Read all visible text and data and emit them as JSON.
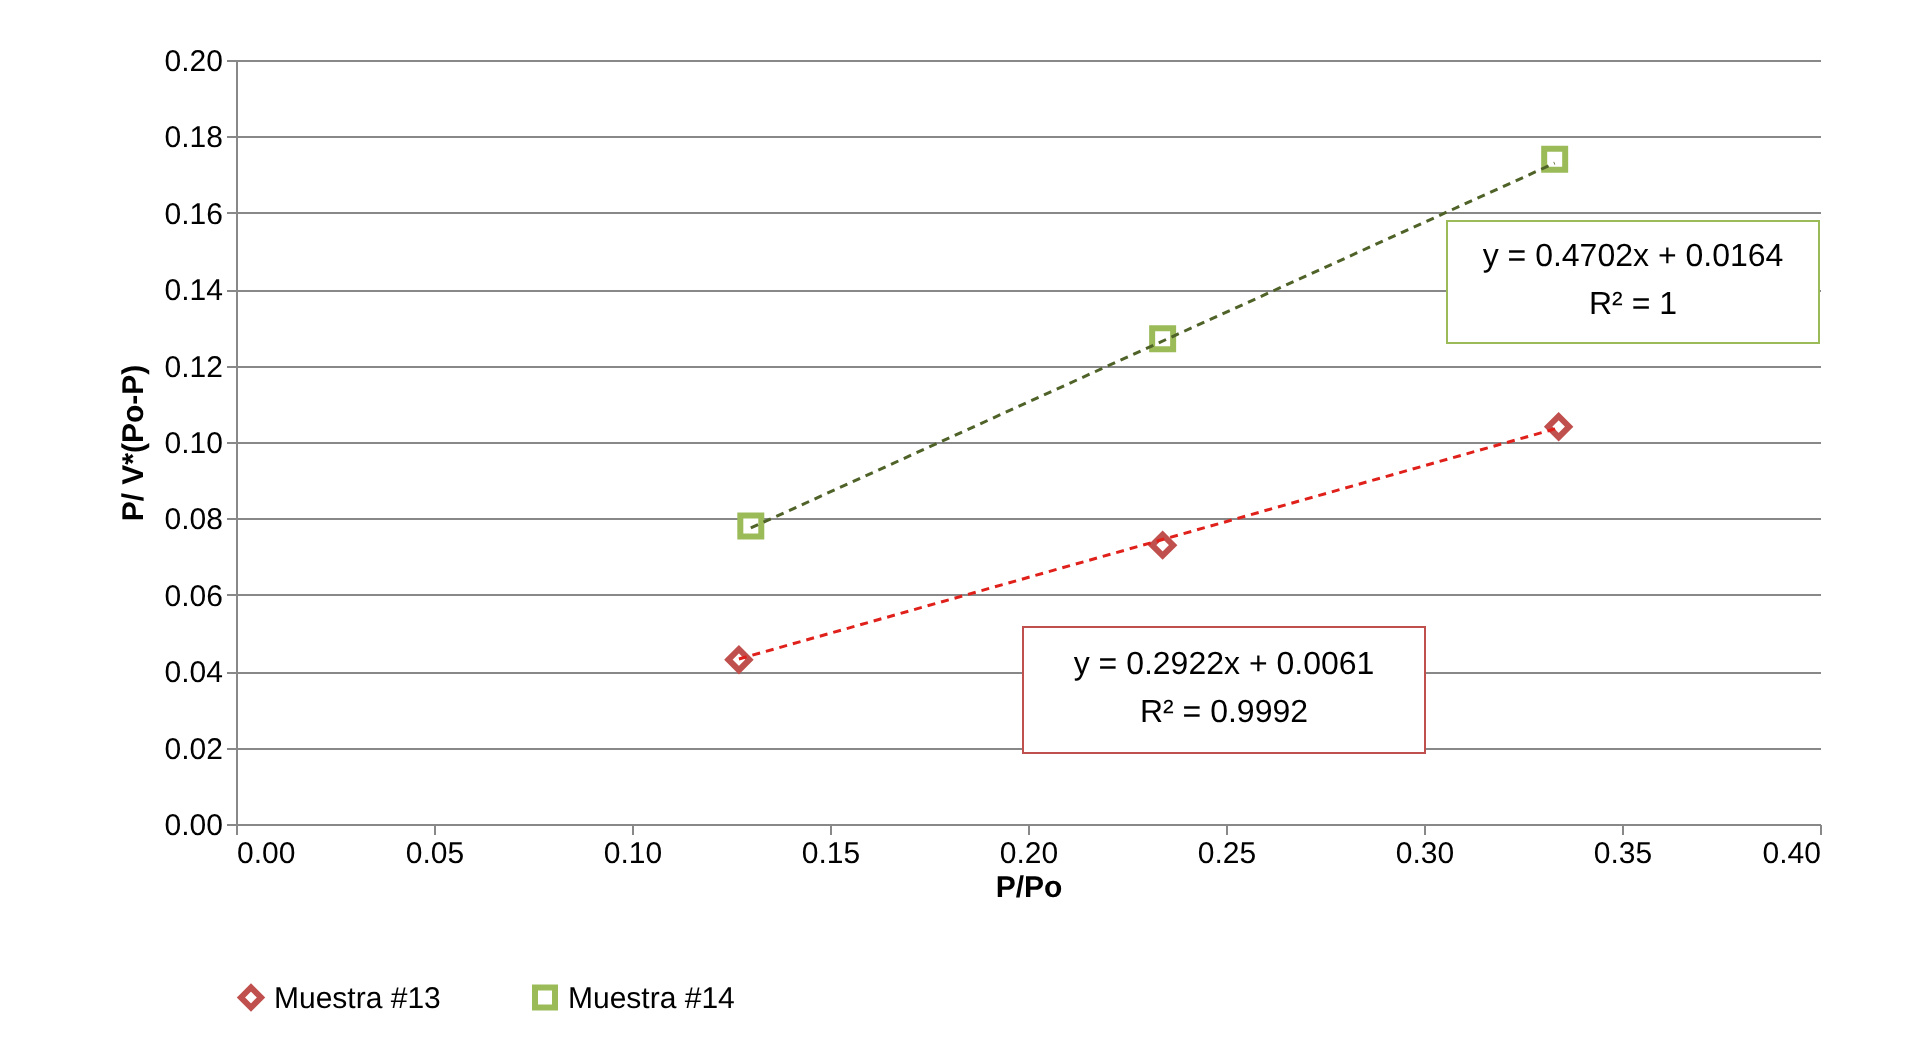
{
  "chart_data": {
    "type": "scatter",
    "xlabel": "P/Po",
    "ylabel": "P/ V*(Po-P)",
    "xlim": [
      0,
      0.4
    ],
    "ylim": [
      0,
      0.2
    ],
    "xticks": [
      {
        "value": 0,
        "label": "0.00"
      },
      {
        "value": 0.05,
        "label": "0.05"
      },
      {
        "value": 0.1,
        "label": "0.10"
      },
      {
        "value": 0.15,
        "label": "0.15"
      },
      {
        "value": 0.2,
        "label": "0.20"
      },
      {
        "value": 0.25,
        "label": "0.25"
      },
      {
        "value": 0.3,
        "label": "0.30"
      },
      {
        "value": 0.35,
        "label": "0.35"
      },
      {
        "value": 0.4,
        "label": "0.40"
      }
    ],
    "yticks": [
      {
        "value": 0,
        "label": "0.00"
      },
      {
        "value": 0.02,
        "label": "0.02"
      },
      {
        "value": 0.04,
        "label": "0.04"
      },
      {
        "value": 0.06,
        "label": "0.06"
      },
      {
        "value": 0.08,
        "label": "0.08"
      },
      {
        "value": 0.1,
        "label": "0.10"
      },
      {
        "value": 0.12,
        "label": "0.12"
      },
      {
        "value": 0.14,
        "label": "0.14"
      },
      {
        "value": 0.16,
        "label": "0.16"
      },
      {
        "value": 0.18,
        "label": "0.18"
      },
      {
        "value": 0.2,
        "label": "0.20"
      }
    ],
    "grid": "y",
    "legend": "bottom",
    "series": [
      {
        "name": "Muestra #13",
        "color": "#c0504d",
        "marker": "diamond",
        "x": [
          0.127,
          0.234,
          0.334
        ],
        "values": [
          0.043,
          0.073,
          0.104
        ]
      },
      {
        "name": "Muestra #14",
        "color": "#9bbb59",
        "marker": "square",
        "x": [
          0.13,
          0.234,
          0.333
        ],
        "values": [
          0.078,
          0.127,
          0.174
        ]
      },
      {
        "type": "line",
        "color": "#e0201a",
        "line_style": "dashed",
        "x": [
          0.127,
          0.334
        ],
        "values": [
          0.0432,
          0.1037
        ]
      },
      {
        "type": "line",
        "color": "#4f6228",
        "line_style": "dashed",
        "x": [
          0.13,
          0.333
        ],
        "values": [
          0.0775,
          0.173
        ]
      }
    ],
    "annotations": [
      "y = 0.4702x + 0.0164\nR² = 1",
      "y = 0.2922x + 0.0061\nR² = 0.9992"
    ]
  }
}
